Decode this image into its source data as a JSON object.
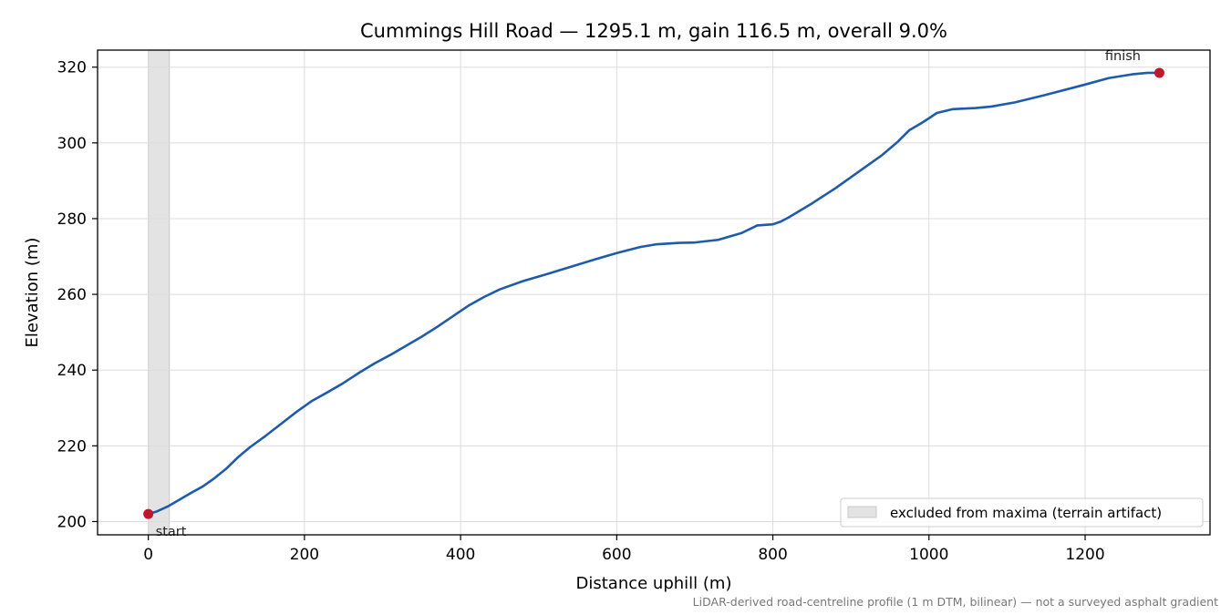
{
  "chart_data": {
    "type": "line",
    "title": "Cummings Hill Road — 1295.1 m, gain 116.5 m, overall 9.0%",
    "xlabel": "Distance uphill (m)",
    "ylabel": "Elevation (m)",
    "xlim": [
      -65,
      1360
    ],
    "ylim": [
      196.5,
      324.5
    ],
    "xticks": [
      0,
      200,
      400,
      600,
      800,
      1000,
      1200
    ],
    "yticks": [
      200,
      220,
      240,
      260,
      280,
      300,
      320
    ],
    "grid": true,
    "series": [
      {
        "color": "#1f5bab",
        "x": [
          0,
          10,
          25,
          40,
          55,
          70,
          85,
          100,
          115,
          130,
          150,
          170,
          190,
          210,
          230,
          250,
          270,
          290,
          310,
          330,
          350,
          370,
          390,
          410,
          430,
          450,
          480,
          510,
          540,
          570,
          600,
          630,
          650,
          680,
          700,
          730,
          760,
          780,
          800,
          810,
          820,
          850,
          880,
          910,
          940,
          960,
          975,
          990,
          1000,
          1010,
          1030,
          1060,
          1080,
          1110,
          1150,
          1200,
          1230,
          1260,
          1280,
          1295.1
        ],
        "y": [
          202,
          202.6,
          204,
          205.8,
          207.6,
          209.3,
          211.5,
          214,
          217,
          219.6,
          222.6,
          225.8,
          229,
          231.9,
          234.2,
          236.6,
          239.3,
          241.8,
          244,
          246.4,
          248.8,
          251.4,
          254.2,
          257,
          259.3,
          261.3,
          263.5,
          265.3,
          267.2,
          269.1,
          270.9,
          272.5,
          273.2,
          273.6,
          273.7,
          274.4,
          276.2,
          278.2,
          278.5,
          279.2,
          280.3,
          284,
          288,
          292.4,
          296.8,
          300.3,
          303.4,
          305.2,
          306.5,
          307.9,
          308.9,
          309.2,
          309.6,
          310.7,
          312.7,
          315.4,
          317.1,
          318.1,
          318.5,
          318.5
        ]
      }
    ],
    "markers": [
      {
        "x": 0,
        "y": 202,
        "label": "start",
        "color": "#c0182a"
      },
      {
        "x": 1295.1,
        "y": 318.5,
        "label": "finish",
        "color": "#c0182a"
      }
    ],
    "shaded_region": {
      "x0": 0,
      "x1": 27,
      "color": "#e3e3e3"
    },
    "legend": {
      "placement": "lower-right",
      "entries": [
        "excluded from maxima (terrain artifact)"
      ]
    },
    "footnote": "LiDAR-derived road-centreline profile (1 m DTM, bilinear) — not a surveyed asphalt gradient"
  }
}
